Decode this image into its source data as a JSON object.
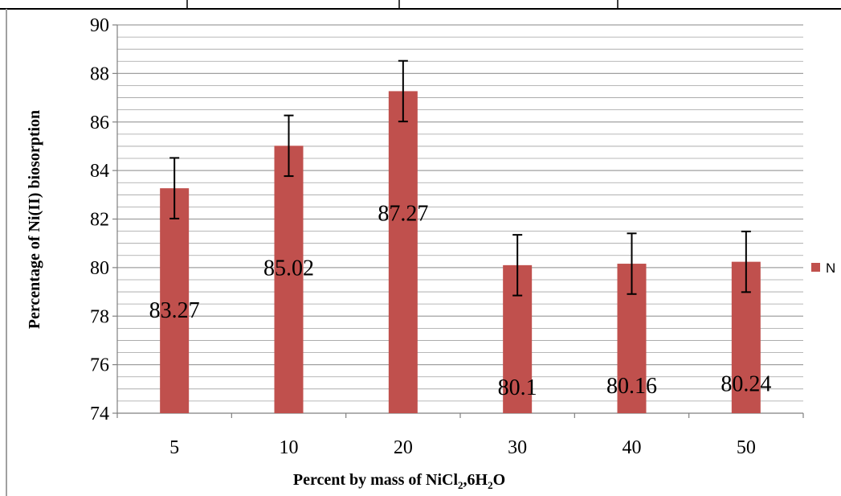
{
  "chart_data": {
    "type": "bar",
    "categories": [
      "5",
      "10",
      "20",
      "30",
      "40",
      "50"
    ],
    "series": [
      {
        "name": "N",
        "values": [
          83.27,
          85.02,
          87.27,
          80.1,
          80.16,
          80.24
        ],
        "errors": [
          1.25,
          1.25,
          1.25,
          1.25,
          1.25,
          1.25
        ],
        "data_labels": [
          "83.27",
          "85.02",
          "87.27",
          "80.1",
          "80.16",
          "80.24"
        ]
      }
    ],
    "xlabel": {
      "main": "Percent by mass of NiCl",
      "sub1": "2",
      "mid": ",6H",
      "sub2": "2",
      "end": "O"
    },
    "ylabel": "Percentage of Ni(II) biosorption",
    "ylim": [
      74,
      90
    ],
    "yticks": [
      74,
      76,
      78,
      80,
      82,
      84,
      86,
      88,
      90
    ],
    "minor_step": 0.5,
    "grid": true,
    "legend_position": "right",
    "colors": {
      "bar": "#C0504D",
      "bar_edge": "#9E3B39",
      "grid": "#A0A0A0",
      "axis": "#808080",
      "error": "#000000"
    }
  }
}
